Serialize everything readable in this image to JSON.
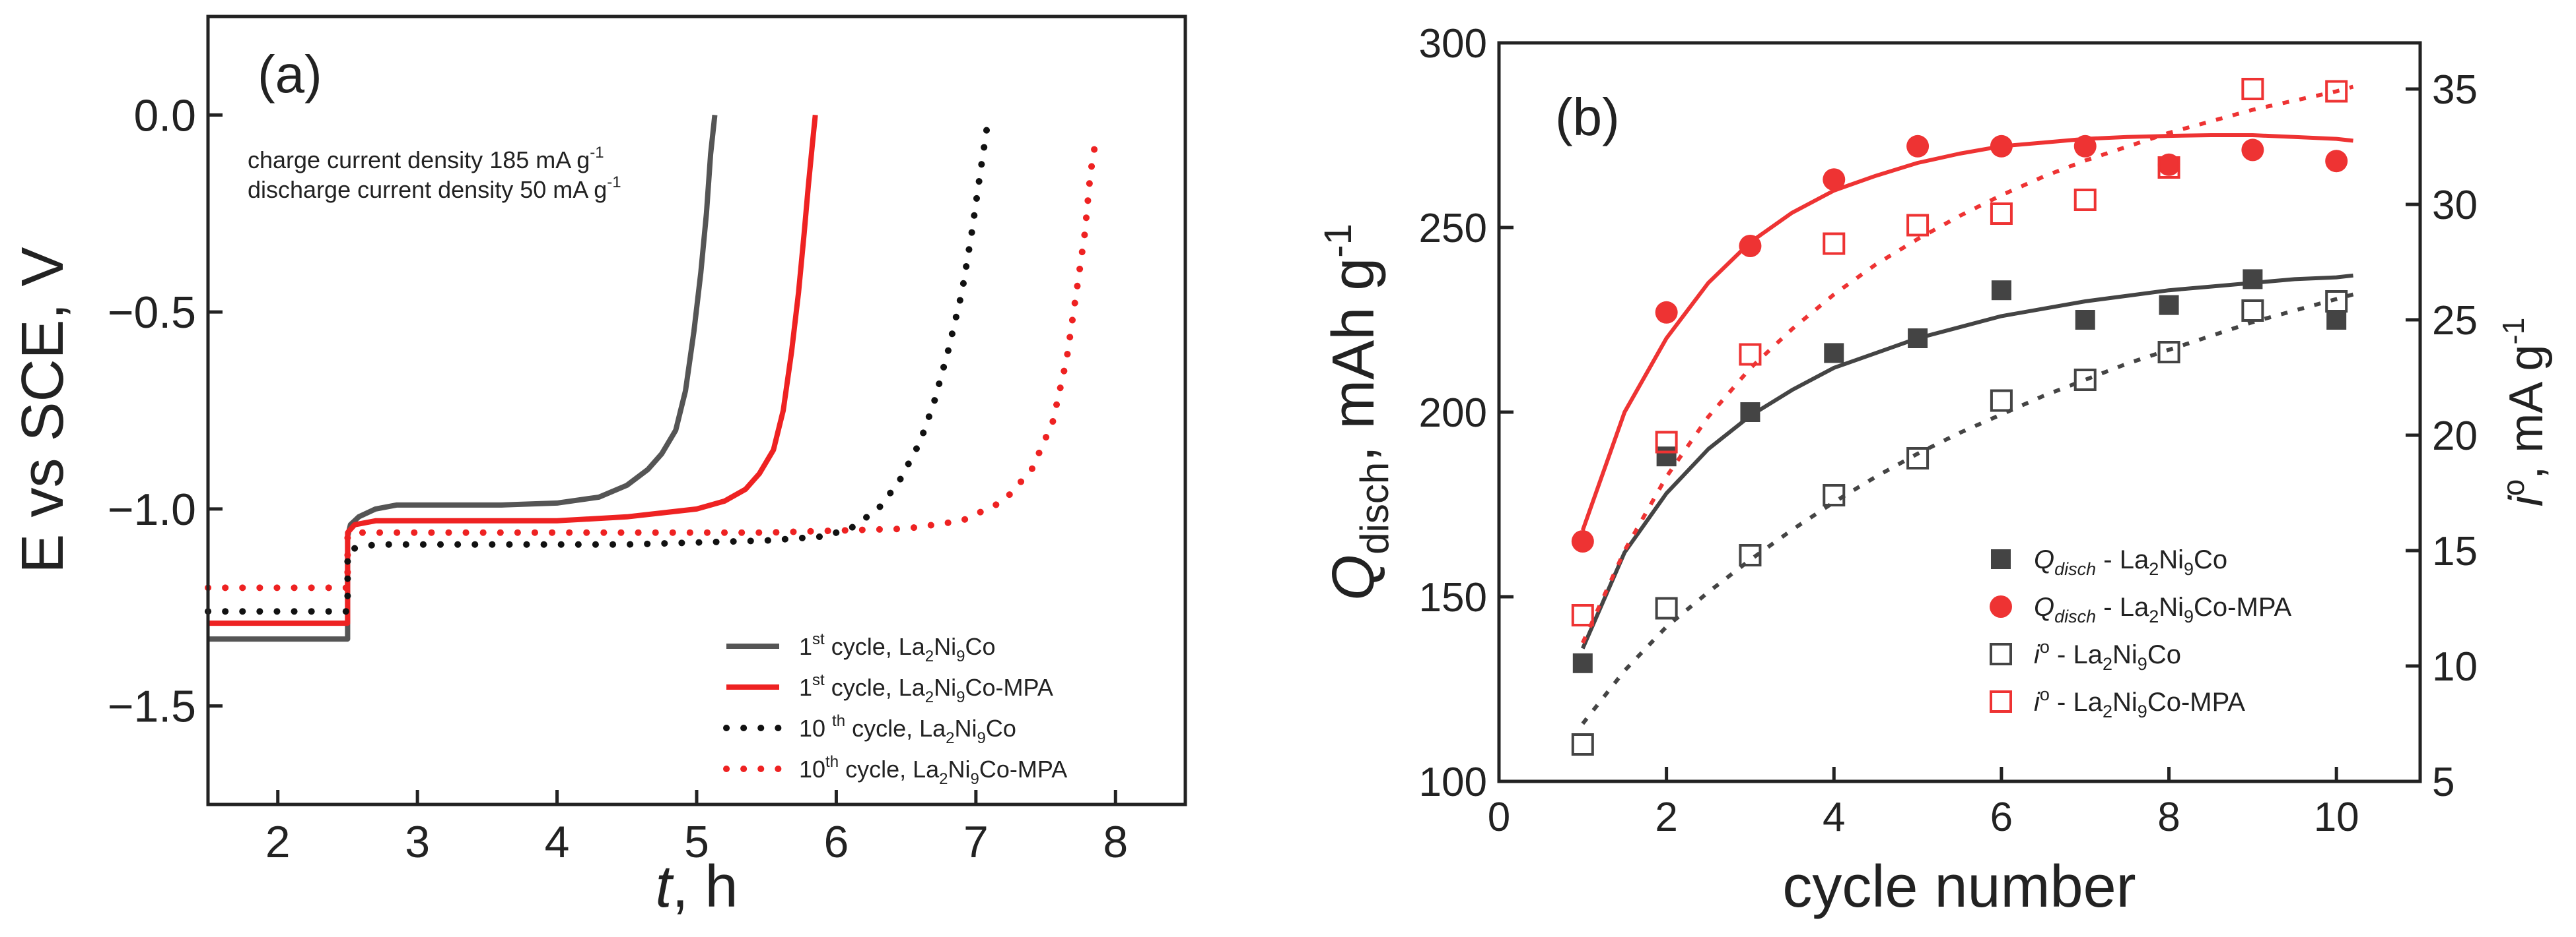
{
  "chart_data": [
    {
      "panel": "(a)",
      "type": "line",
      "xlabel_italic": "t",
      "xlabel_rest": ", h",
      "ylabel": "E vs SCE, V",
      "xlim": [
        1.5,
        8.5
      ],
      "ylim": [
        -1.75,
        0.25
      ],
      "xticks": [
        2,
        3,
        4,
        5,
        6,
        7,
        8
      ],
      "yticks": [
        0.0,
        -0.5,
        -1.0,
        -1.5
      ],
      "ytick_labels": [
        "0.0",
        "−0.5",
        "−1.0",
        "−1.5"
      ],
      "annotation_line1": "charge current density 185 mA g",
      "annotation_line1_sup": "-1",
      "annotation_line2": "discharge current density 50 mA g",
      "annotation_line2_sup": "-1",
      "legend_position": "bottom-right",
      "series": [
        {
          "name": "1st cycle, La2Ni9Co",
          "legend_a": "1",
          "legend_sup": "st",
          "legend_b": " cycle, La",
          "legend_s1": "2",
          "legend_c": "Ni",
          "legend_s2": "9",
          "legend_d": "Co",
          "color": "#555555",
          "style": "solid",
          "x": [
            1.5,
            2.5,
            2.5,
            2.52,
            2.58,
            2.7,
            2.85,
            3.2,
            3.6,
            4.0,
            4.3,
            4.5,
            4.65,
            4.75,
            4.85,
            4.92,
            4.98,
            5.03,
            5.07,
            5.1,
            5.13
          ],
          "y": [
            -1.33,
            -1.33,
            -1.07,
            -1.04,
            -1.02,
            -1.0,
            -0.99,
            -0.99,
            -0.99,
            -0.985,
            -0.97,
            -0.94,
            -0.9,
            -0.86,
            -0.8,
            -0.7,
            -0.55,
            -0.4,
            -0.25,
            -0.1,
            0.0
          ]
        },
        {
          "name": "1st cycle, La2Ni9Co-MPA",
          "legend_a": "1",
          "legend_sup": "st",
          "legend_b": " cycle, La",
          "legend_s1": "2",
          "legend_c": "Ni",
          "legend_s2": "9",
          "legend_d": "Co-MPA",
          "color": "#ee2222",
          "style": "solid",
          "x": [
            1.5,
            2.5,
            2.5,
            2.55,
            2.7,
            3.0,
            3.5,
            4.0,
            4.5,
            5.0,
            5.2,
            5.35,
            5.45,
            5.55,
            5.62,
            5.68,
            5.73,
            5.77,
            5.8,
            5.83,
            5.85
          ],
          "y": [
            -1.29,
            -1.29,
            -1.06,
            -1.04,
            -1.03,
            -1.03,
            -1.03,
            -1.03,
            -1.02,
            -1.0,
            -0.98,
            -0.95,
            -0.91,
            -0.85,
            -0.75,
            -0.6,
            -0.45,
            -0.3,
            -0.18,
            -0.07,
            0.0
          ]
        },
        {
          "name": "10th cycle, La2Ni9Co",
          "legend_a": "10 ",
          "legend_sup": "th",
          "legend_b": " cycle, La",
          "legend_s1": "2",
          "legend_c": "Ni",
          "legend_s2": "9",
          "legend_d": "Co",
          "color": "#111111",
          "style": "dotted",
          "x": [
            1.5,
            2.5,
            2.5,
            2.55,
            2.7,
            3.0,
            3.5,
            4.0,
            4.5,
            5.0,
            5.5,
            5.9,
            6.1,
            6.3,
            6.45,
            6.6,
            6.7,
            6.8,
            6.9,
            6.97,
            7.03,
            7.08
          ],
          "y": [
            -1.26,
            -1.26,
            -1.11,
            -1.1,
            -1.09,
            -1.09,
            -1.09,
            -1.09,
            -1.09,
            -1.085,
            -1.08,
            -1.07,
            -1.05,
            -1.0,
            -0.93,
            -0.83,
            -0.73,
            -0.6,
            -0.45,
            -0.3,
            -0.15,
            -0.03
          ]
        },
        {
          "name": "10th cycle, La2Ni9Co-MPA",
          "legend_a": "10",
          "legend_sup": "th",
          "legend_b": " cycle, La",
          "legend_s1": "2",
          "legend_c": "Ni",
          "legend_s2": "9",
          "legend_d": "Co-MPA",
          "color": "#ee2222",
          "style": "dotted",
          "x": [
            1.5,
            2.5,
            2.5,
            2.55,
            2.7,
            3.0,
            3.5,
            4.0,
            4.5,
            5.0,
            5.5,
            6.0,
            6.5,
            6.9,
            7.2,
            7.4,
            7.55,
            7.65,
            7.72,
            7.78,
            7.82,
            7.86
          ],
          "y": [
            -1.2,
            -1.2,
            -1.07,
            -1.06,
            -1.06,
            -1.06,
            -1.06,
            -1.06,
            -1.06,
            -1.06,
            -1.06,
            -1.055,
            -1.05,
            -1.03,
            -0.98,
            -0.9,
            -0.78,
            -0.62,
            -0.45,
            -0.3,
            -0.15,
            -0.06
          ]
        }
      ]
    },
    {
      "panel": "(b)",
      "type": "scatter",
      "xlabel": "cycle number",
      "ylabel_main": "Q",
      "ylabel_sub": "disch",
      "ylabel_unit": ", mAh g",
      "ylabel_sup": "-1",
      "y2label_italic": "i",
      "y2label_deg": "o",
      "y2label_unit": ", mA g",
      "y2label_sup": "-1",
      "xlim": [
        0,
        11
      ],
      "ylim": [
        100,
        300
      ],
      "y2lim": [
        5,
        37
      ],
      "xticks": [
        0,
        2,
        4,
        6,
        8,
        10
      ],
      "yticks": [
        100,
        150,
        200,
        250,
        300
      ],
      "y2ticks": [
        5,
        10,
        15,
        20,
        25,
        30,
        35
      ],
      "legend_position": "bottom-right",
      "series": [
        {
          "name": "Qdisch - La2Ni9Co",
          "legend_main": "Q",
          "legend_sub": "disch",
          "legend_b": " - La",
          "legend_s1": "2",
          "legend_c": "Ni",
          "legend_s2": "9",
          "legend_d": "Co",
          "axis": "left",
          "marker": "filled-square",
          "color": "#444444",
          "x": [
            1,
            2,
            3,
            4,
            5,
            6,
            7,
            8,
            9,
            10
          ],
          "y": [
            132,
            188,
            200,
            216,
            220,
            233,
            225,
            229,
            236,
            225
          ],
          "fit_style": "solid",
          "fit_x": [
            1,
            1.5,
            2,
            2.5,
            3,
            3.5,
            4,
            4.5,
            5,
            5.5,
            6,
            6.5,
            7,
            7.5,
            8,
            8.5,
            9,
            9.5,
            10,
            10.2
          ],
          "fit_y": [
            136,
            162,
            178,
            190,
            199,
            206,
            212,
            216,
            220,
            223,
            226,
            228,
            230,
            231.5,
            233,
            234,
            235,
            236,
            236.5,
            237
          ]
        },
        {
          "name": "Qdisch - La2Ni9Co-MPA",
          "legend_main": "Q",
          "legend_sub": "disch",
          "legend_b": " - La",
          "legend_s1": "2",
          "legend_c": "Ni",
          "legend_s2": "9",
          "legend_d": "Co-MPA",
          "axis": "left",
          "marker": "filled-circle",
          "color": "#ee3333",
          "x": [
            1,
            2,
            3,
            4,
            5,
            6,
            7,
            8,
            9,
            10
          ],
          "y": [
            165,
            227,
            245,
            263,
            272,
            272,
            272,
            267,
            271,
            268
          ],
          "fit_style": "solid",
          "fit_x": [
            1,
            1.5,
            2,
            2.5,
            3,
            3.5,
            4,
            4.5,
            5,
            5.5,
            6,
            6.5,
            7,
            7.5,
            8,
            8.5,
            9,
            9.5,
            10,
            10.2
          ],
          "fit_y": [
            168,
            200,
            220,
            235,
            246,
            254,
            260,
            264,
            267.5,
            270,
            272,
            273,
            274,
            274.5,
            274.8,
            275,
            275,
            274.5,
            274,
            273.5
          ]
        },
        {
          "name": "i° - La2Ni9Co",
          "legend_main": "i",
          "legend_deg": "o",
          "legend_b": " - La",
          "legend_s1": "2",
          "legend_c": "Ni",
          "legend_s2": "9",
          "legend_d": "Co",
          "axis": "right",
          "marker": "open-square",
          "color": "#444444",
          "x": [
            1,
            2,
            3,
            4,
            5,
            6,
            7,
            8,
            9,
            10
          ],
          "y": [
            6.6,
            12.5,
            14.8,
            17.4,
            19.0,
            21.5,
            22.4,
            23.6,
            25.4,
            25.8
          ],
          "fit_style": "dotted",
          "fit_x": [
            1,
            1.5,
            2,
            2.5,
            3,
            3.5,
            4,
            4.5,
            5,
            5.5,
            6,
            6.5,
            7,
            7.5,
            8,
            8.5,
            9,
            9.5,
            10,
            10.2
          ],
          "fit_y": [
            7.5,
            9.8,
            11.7,
            13.2,
            14.6,
            15.9,
            17.1,
            18.2,
            19.2,
            20.1,
            20.9,
            21.7,
            22.4,
            23.1,
            23.7,
            24.3,
            24.9,
            25.4,
            25.9,
            26.1
          ]
        },
        {
          "name": "i° - La2Ni9Co-MPA",
          "legend_main": "i",
          "legend_deg": "o",
          "legend_b": " - La",
          "legend_s1": "2",
          "legend_c": "Ni",
          "legend_s2": "9",
          "legend_d": "Co-MPA",
          "axis": "right",
          "marker": "open-square",
          "color": "#ee3333",
          "x": [
            1,
            2,
            3,
            4,
            5,
            6,
            7,
            8,
            9,
            10
          ],
          "y": [
            12.2,
            19.7,
            23.5,
            28.3,
            29.1,
            29.6,
            30.2,
            31.6,
            35.0,
            34.9
          ],
          "fit_style": "dotted",
          "fit_x": [
            1,
            1.5,
            2,
            2.5,
            3,
            3.5,
            4,
            4.5,
            5,
            5.5,
            6,
            6.5,
            7,
            7.5,
            8,
            8.5,
            9,
            9.5,
            10,
            10.2
          ],
          "fit_y": [
            11.0,
            15.0,
            18.2,
            20.8,
            22.9,
            24.6,
            26.1,
            27.4,
            28.5,
            29.5,
            30.4,
            31.2,
            31.9,
            32.5,
            33.1,
            33.6,
            34.1,
            34.5,
            34.9,
            35.1
          ]
        }
      ]
    }
  ]
}
